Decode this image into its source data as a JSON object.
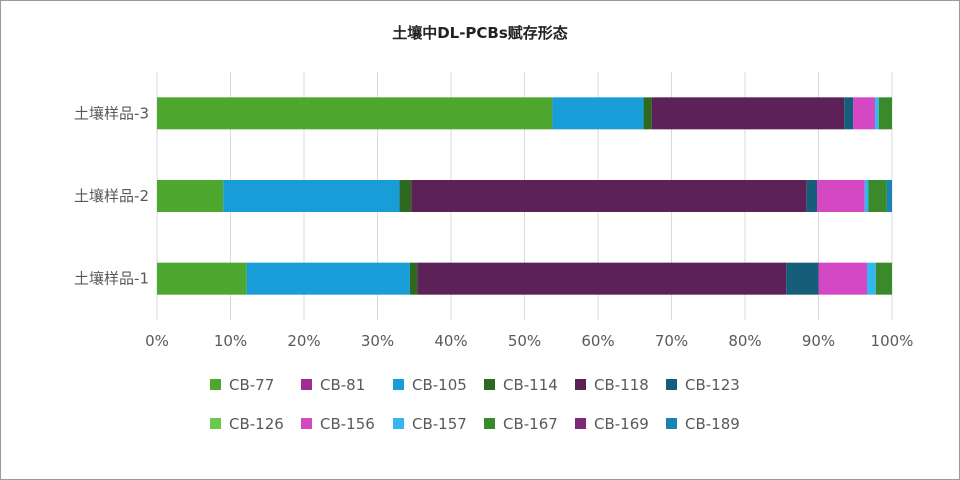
{
  "chart_data": {
    "type": "bar",
    "orientation": "horizontal",
    "stacked": "percent",
    "title": "土壤中DL-PCBs赋存形态",
    "categories": [
      "土壤样品-3",
      "土壤样品-2",
      "土壤样品-1"
    ],
    "xlim": [
      0,
      100
    ],
    "x_ticks": [
      "0%",
      "10%",
      "20%",
      "30%",
      "40%",
      "50%",
      "60%",
      "70%",
      "80%",
      "90%",
      "100%"
    ],
    "grid": "vertical",
    "legend_position": "bottom",
    "series": [
      {
        "name": "CB-77",
        "color": "#4ea72e",
        "values": [
          53.8,
          9.0,
          12.2
        ]
      },
      {
        "name": "CB-81",
        "color": "#a02b93",
        "values": [
          0.0,
          0.0,
          0.0
        ]
      },
      {
        "name": "CB-105",
        "color": "#199dd8",
        "values": [
          12.4,
          24.0,
          22.2
        ]
      },
      {
        "name": "CB-114",
        "color": "#2d6a1f",
        "values": [
          1.1,
          1.6,
          1.0
        ]
      },
      {
        "name": "CB-118",
        "color": "#5c2157",
        "values": [
          26.2,
          53.8,
          50.2
        ]
      },
      {
        "name": "CB-123",
        "color": "#145e7a",
        "values": [
          1.2,
          1.4,
          4.4
        ]
      },
      {
        "name": "CB-126",
        "color": "#6cc84c",
        "values": [
          0.0,
          0.0,
          0.0
        ]
      },
      {
        "name": "CB-156",
        "color": "#d548c3",
        "values": [
          3.0,
          6.5,
          6.6
        ]
      },
      {
        "name": "CB-157",
        "color": "#33b7ee",
        "values": [
          0.5,
          0.5,
          1.2
        ]
      },
      {
        "name": "CB-167",
        "color": "#3a8a2b",
        "values": [
          1.8,
          2.5,
          2.2
        ]
      },
      {
        "name": "CB-169",
        "color": "#7d2a76",
        "values": [
          0.0,
          0.0,
          0.0
        ]
      },
      {
        "name": "CB-189",
        "color": "#1a83b6",
        "values": [
          0.0,
          0.7,
          0.0
        ]
      }
    ]
  }
}
